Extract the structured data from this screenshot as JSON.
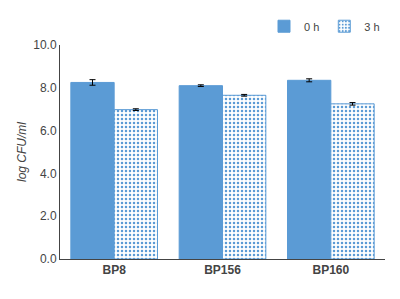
{
  "chart_data": {
    "type": "bar",
    "categories": [
      "BP8",
      "BP156",
      "BP160"
    ],
    "series": [
      {
        "name": "0 h",
        "color": "#5B9BD5",
        "values": [
          8.25,
          8.1,
          8.35
        ],
        "errors": [
          0.13,
          0.04,
          0.07
        ]
      },
      {
        "name": "3 h",
        "color": "#FFFFFF",
        "values": [
          6.98,
          7.65,
          7.25
        ],
        "errors": [
          0.04,
          0.04,
          0.06
        ]
      }
    ],
    "ylabel": "log CFU/ml",
    "ylim": [
      0.0,
      10.0
    ],
    "yticks": [
      {
        "value": 0.0,
        "label": "0.0"
      },
      {
        "value": 2.0,
        "label": "2.0"
      },
      {
        "value": 4.0,
        "label": "4.0"
      },
      {
        "value": 6.0,
        "label": "6.0"
      },
      {
        "value": 8.0,
        "label": "8.0"
      },
      {
        "value": 10.0,
        "label": "10.0"
      }
    ],
    "grid": false,
    "legend": "upper right"
  }
}
